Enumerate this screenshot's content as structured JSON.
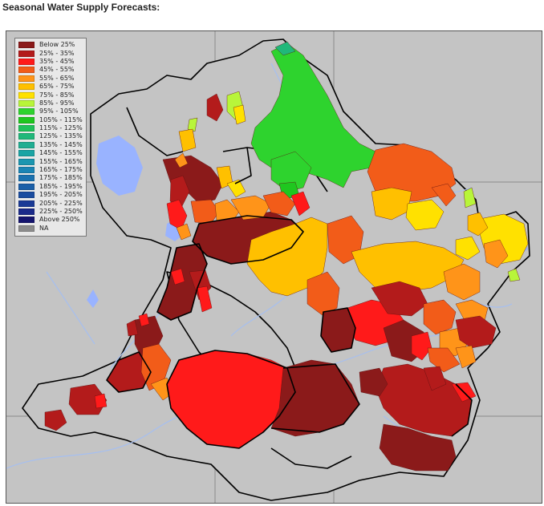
{
  "title": "Seasonal Water Supply Forecasts:",
  "legend": [
    {
      "label": "Below 25%",
      "color": "#8b1a1a"
    },
    {
      "label": "25% -  35%",
      "color": "#b31b1b"
    },
    {
      "label": "35% -  45%",
      "color": "#ff1a1a"
    },
    {
      "label": "45% -  55%",
      "color": "#f25c19"
    },
    {
      "label": "55% -  65%",
      "color": "#ff9419"
    },
    {
      "label": "65% -  75%",
      "color": "#ffc000"
    },
    {
      "label": "75% -  85%",
      "color": "#ffe100"
    },
    {
      "label": "85% -  95%",
      "color": "#b8f53a"
    },
    {
      "label": "95% - 105%",
      "color": "#2ed32e"
    },
    {
      "label": "105% - 115%",
      "color": "#1fc71f"
    },
    {
      "label": "115% - 125%",
      "color": "#20c25a"
    },
    {
      "label": "125% - 135%",
      "color": "#20b87a"
    },
    {
      "label": "135% - 145%",
      "color": "#1fae92"
    },
    {
      "label": "145% - 155%",
      "color": "#1aa4a4"
    },
    {
      "label": "155% - 165%",
      "color": "#1a96b0"
    },
    {
      "label": "165% - 175%",
      "color": "#1a85b5"
    },
    {
      "label": "175% - 185%",
      "color": "#1a72b0"
    },
    {
      "label": "185% - 195%",
      "color": "#1a5fa8"
    },
    {
      "label": "195% - 205%",
      "color": "#1a4ca0"
    },
    {
      "label": "205% - 225%",
      "color": "#1a3a96"
    },
    {
      "label": "225% - 250%",
      "color": "#1a2a8a"
    },
    {
      "label": "Above 250%",
      "color": "#14146e"
    },
    {
      "label": "NA",
      "color": "#8c8c8c"
    }
  ],
  "colors": {
    "background": "#c4c4c4",
    "lakes": "#99b3ff",
    "rivers": "#a6bff0",
    "outlines": "#000000"
  }
}
